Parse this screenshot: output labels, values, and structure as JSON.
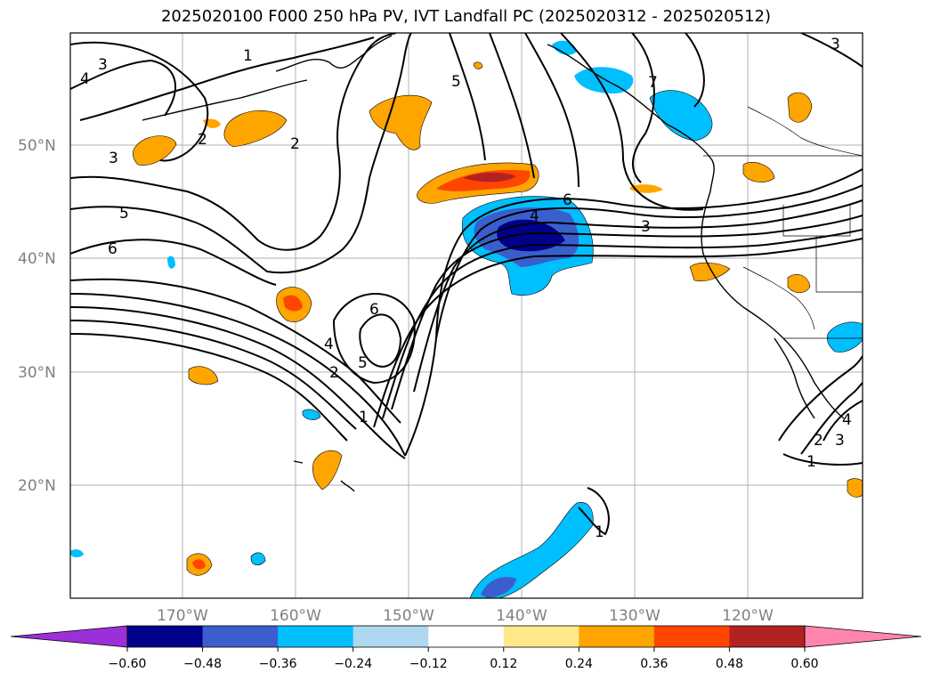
{
  "title": "2025020100 F000 250 hPa PV, IVT Landfall PC (2025020312 - 2025020512)",
  "map": {
    "lat_labels": [
      "50°N",
      "40°N",
      "30°N",
      "20°N"
    ],
    "lon_labels": [
      "170°W",
      "160°W",
      "150°W",
      "140°W",
      "130°W",
      "120°W"
    ],
    "contour_labels": [
      "3",
      "4",
      "1",
      "2",
      "2",
      "3",
      "5",
      "6",
      "6",
      "4",
      "5",
      "2",
      "1",
      "5",
      "6",
      "4",
      "3",
      "7",
      "3",
      "1",
      "2",
      "3",
      "4",
      "1"
    ]
  },
  "colorbar": {
    "colors": [
      "#9b30d8",
      "#00008b",
      "#3a5fcd",
      "#00bfff",
      "#add8f0",
      "#ffffff",
      "#ffe98a",
      "#ffa500",
      "#ff4500",
      "#b22222",
      "#ff85ad",
      "#ff85ad"
    ],
    "ticks": [
      "−0.60",
      "−0.48",
      "−0.36",
      "−0.24",
      "−0.12",
      "0.12",
      "0.24",
      "0.36",
      "0.48",
      "0.60"
    ]
  }
}
